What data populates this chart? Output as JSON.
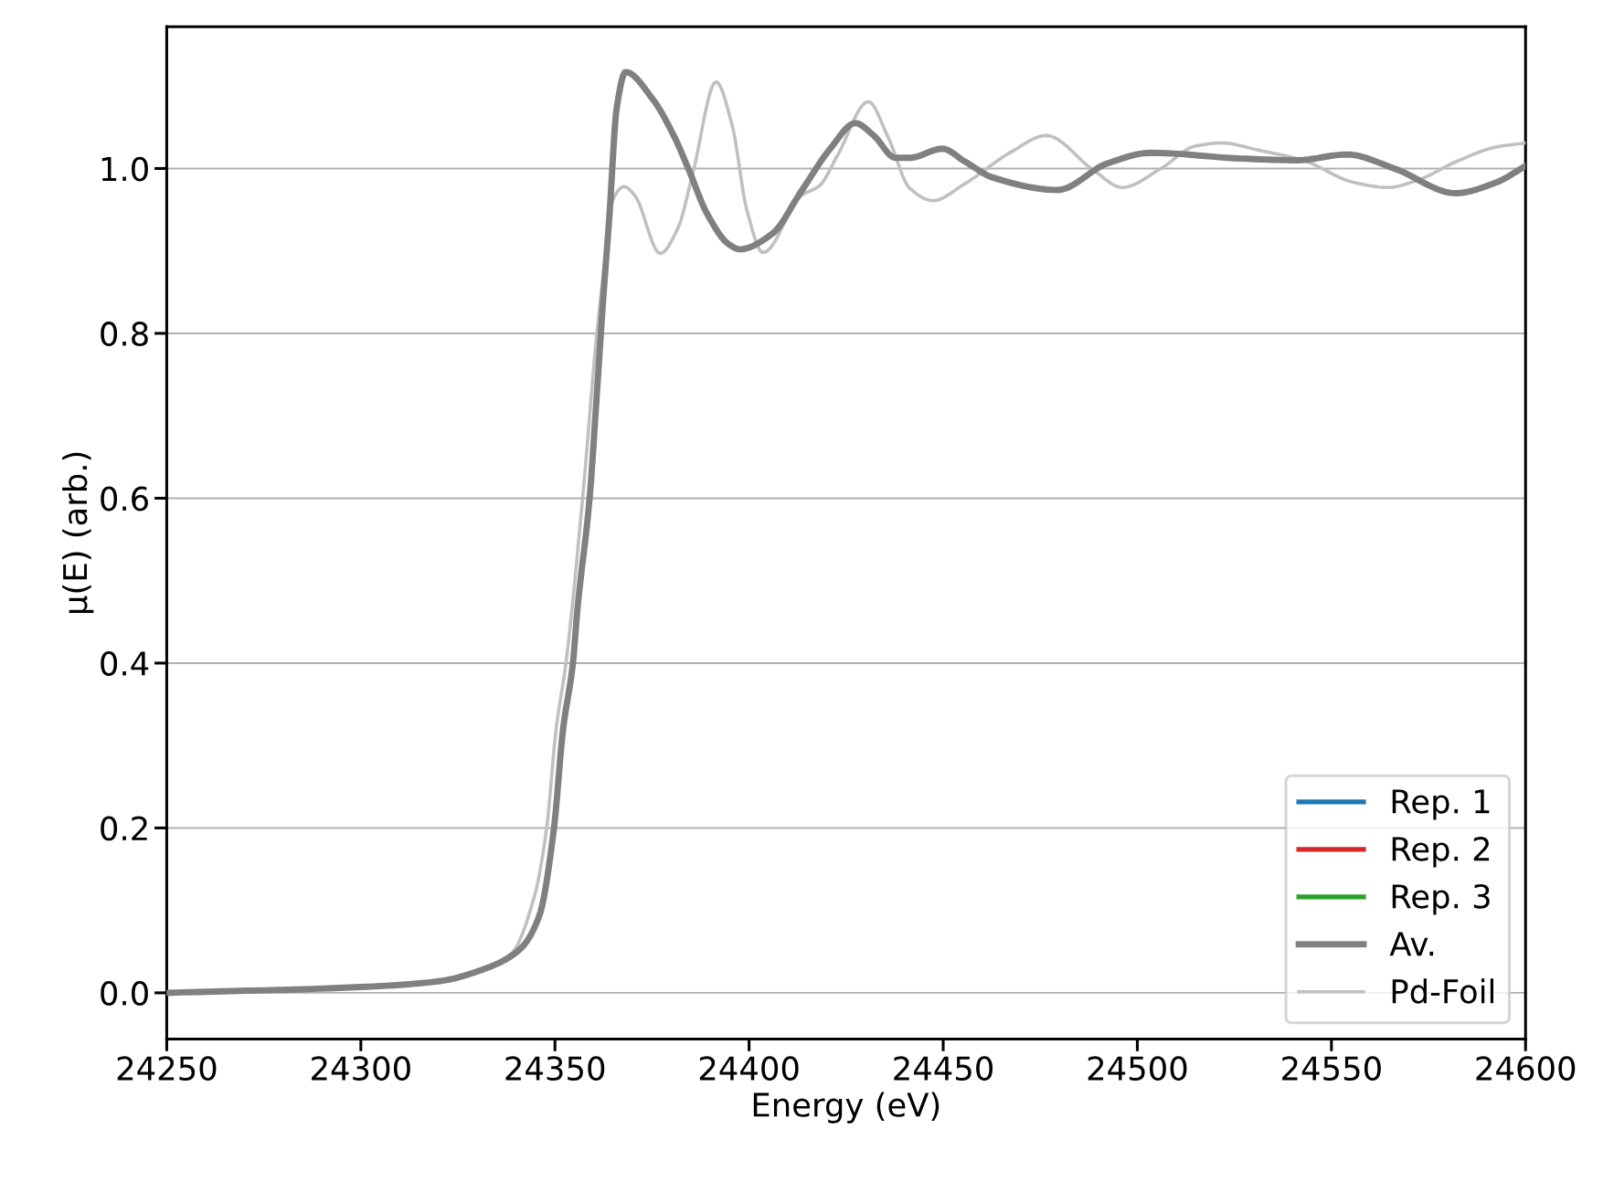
{
  "chart_data": {
    "type": "line",
    "xlabel": "Energy (eV)",
    "ylabel": "μ(E) (arb.)",
    "xlim": [
      24250,
      24600
    ],
    "xticks": [
      24250,
      24300,
      24350,
      24400,
      24450,
      24500,
      24550,
      24600
    ],
    "ylim": [
      -0.056,
      1.172
    ],
    "yticks": [
      {
        "value": 0,
        "label": "0.0"
      },
      0.2,
      0.4,
      0.6,
      0.8,
      {
        "value": 1,
        "label": "1.0"
      }
    ],
    "grid": "y",
    "legend": "bottom right",
    "line_style": "solid",
    "series": [
      {
        "name": "Rep. 1",
        "color": "#1f77b4"
      },
      {
        "name": "Rep. 2",
        "color": "#d62728"
      },
      {
        "name": "Rep. 3",
        "color": "#2ca02c"
      },
      {
        "name": "Av.",
        "color": "#808080",
        "x": [
          24250,
          24300,
          24320,
          24332.4,
          24341,
          24346,
          24349.7,
          24352.1,
          24354.6,
          24355.8,
          24358.9,
          24360.8,
          24362.4,
          24364,
          24365.9,
          24368.2,
          24375.2,
          24380.8,
          24384.5,
          24389.2,
          24394.8,
          24397.6,
          24406,
          24413.4,
          24420.9,
          24427.4,
          24432.1,
          24437.7,
          24441.4,
          24449.8,
          24455.4,
          24462.8,
          24479.5,
          24492.2,
          24503.5,
          24527,
          24541,
          24554,
          24566.2,
          24582,
          24592.4,
          24600
        ],
        "values": [
          0.0,
          0.007,
          0.014,
          0.03,
          0.053,
          0.094,
          0.198,
          0.32,
          0.399,
          0.466,
          0.599,
          0.727,
          0.84,
          0.941,
          1.073,
          1.117,
          1.084,
          1.038,
          0.998,
          0.945,
          0.908,
          0.902,
          0.921,
          0.972,
          1.024,
          1.055,
          1.04,
          1.013,
          1.013,
          1.024,
          1.009,
          0.989,
          0.974,
          1.006,
          1.019,
          1.012,
          1.01,
          1.017,
          1.0,
          0.97,
          0.983,
          1.003
        ]
      },
      {
        "name": "Pd-Foil",
        "color": "#c0c0c0",
        "x": [
          24250,
          24300,
          24320,
          24338.6,
          24344.7,
          24347.8,
          24350.3,
          24352.8,
          24357.1,
          24360.8,
          24363.1,
          24365,
          24367.8,
          24370.6,
          24377.1,
          24381.7,
          24385.5,
          24391.5,
          24395.7,
          24399.4,
          24403.6,
          24413.4,
          24418.1,
          24422.8,
          24430.7,
          24435.8,
          24441.4,
          24447.4,
          24455.4,
          24467.5,
          24476.5,
          24488.7,
          24496.1,
          24506.1,
          24514.8,
          24521.8,
          24531.4,
          24542.7,
          24555.8,
          24564.5,
          24572.3,
          24582,
          24592.4,
          24600
        ],
        "values": [
          0.0,
          0.007,
          0.014,
          0.047,
          0.117,
          0.198,
          0.32,
          0.399,
          0.599,
          0.8,
          0.897,
          0.963,
          0.978,
          0.967,
          0.897,
          0.928,
          0.994,
          1.105,
          1.051,
          0.95,
          0.898,
          0.967,
          0.979,
          1.016,
          1.081,
          1.038,
          0.976,
          0.961,
          0.981,
          1.02,
          1.04,
          0.998,
          0.977,
          1.0,
          1.027,
          1.031,
          1.022,
          1.01,
          0.983,
          0.977,
          0.986,
          1.008,
          1.026,
          1.031
        ]
      }
    ]
  }
}
